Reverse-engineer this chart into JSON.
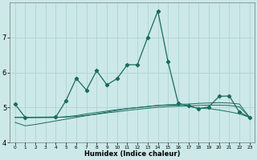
{
  "xlabel": "Humidex (Indice chaleur)",
  "background_color": "#cce8e8",
  "grid_color": "#aad0d0",
  "line_color": "#1a6b5e",
  "x_values": [
    0,
    1,
    2,
    3,
    4,
    5,
    6,
    7,
    8,
    9,
    10,
    11,
    12,
    13,
    14,
    15,
    16,
    17,
    18,
    19,
    20,
    21,
    22,
    23
  ],
  "series1": [
    5.1,
    4.72,
    null,
    null,
    4.73,
    5.2,
    5.83,
    5.5,
    6.05,
    5.65,
    5.82,
    6.22,
    6.22,
    7.0,
    7.75,
    6.3,
    5.12,
    5.05,
    4.97,
    5.02,
    5.32,
    5.33,
    4.87,
    4.72
  ],
  "series2": [
    4.72,
    4.72,
    4.72,
    4.72,
    4.72,
    4.74,
    4.77,
    4.82,
    4.86,
    4.9,
    4.94,
    4.97,
    5.0,
    5.03,
    5.06,
    5.08,
    5.09,
    5.1,
    5.12,
    5.13,
    5.14,
    5.13,
    5.1,
    4.72
  ],
  "series3": [
    4.58,
    4.48,
    4.52,
    4.57,
    4.62,
    4.67,
    4.72,
    4.77,
    4.82,
    4.87,
    4.92,
    4.97,
    5.0,
    5.03,
    5.06,
    5.07,
    5.06,
    5.04,
    4.98,
    4.97,
    4.93,
    4.88,
    4.82,
    4.72
  ],
  "series4": [
    4.72,
    4.72,
    4.72,
    4.72,
    4.72,
    4.73,
    4.75,
    4.78,
    4.81,
    4.85,
    4.88,
    4.92,
    4.95,
    4.98,
    5.01,
    5.03,
    5.04,
    5.05,
    5.06,
    5.07,
    5.07,
    5.06,
    5.02,
    4.72
  ],
  "ylim": [
    4.0,
    8.0
  ],
  "yticks": [
    4,
    5,
    6,
    7
  ],
  "xtick_labels": [
    "0",
    "1",
    "2",
    "3",
    "4",
    "5",
    "6",
    "7",
    "8",
    "9",
    "10",
    "11",
    "12",
    "13",
    "14",
    "15",
    "16",
    "17",
    "18",
    "19",
    "20",
    "21",
    "22",
    "23"
  ]
}
